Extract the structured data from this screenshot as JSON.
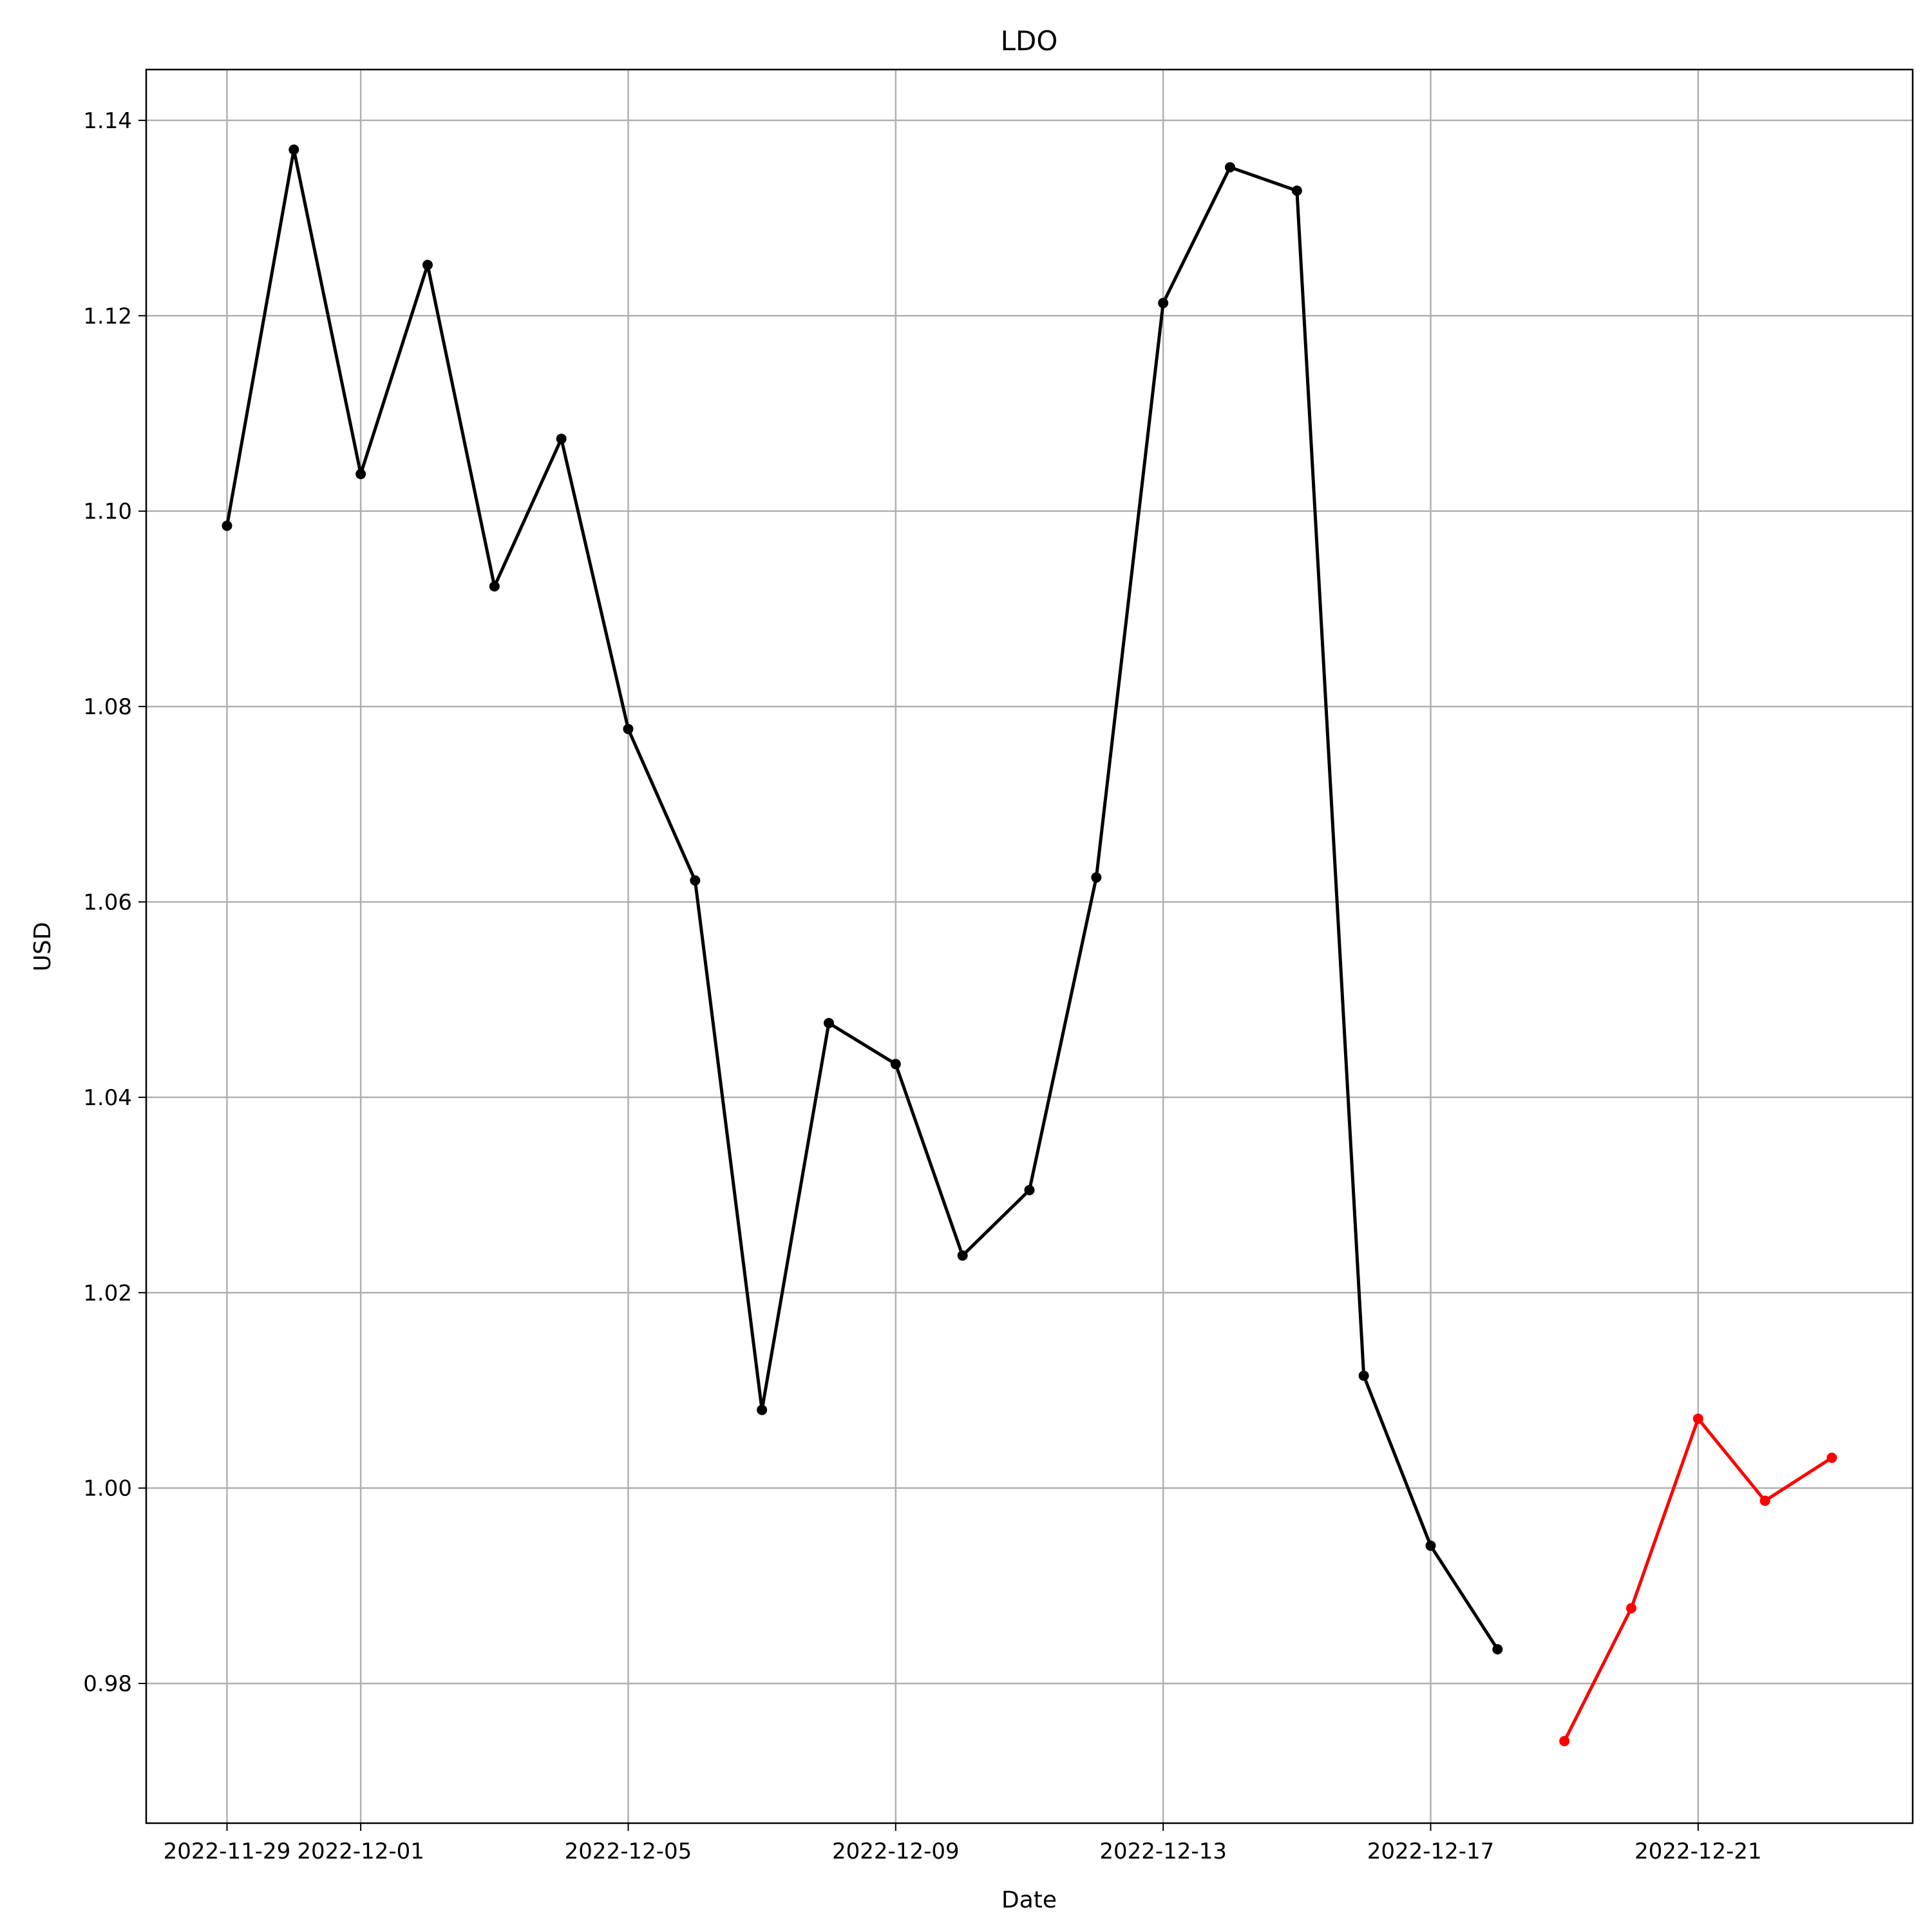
{
  "chart_data": {
    "type": "line",
    "title": "LDO",
    "xlabel": "Date",
    "ylabel": "USD",
    "grid": true,
    "x_ticks": [
      "2022-11-29",
      "2022-12-01",
      "2022-12-05",
      "2022-12-09",
      "2022-12-13",
      "2022-12-17",
      "2022-12-21"
    ],
    "y_ticks": [
      "0.98",
      "1.00",
      "1.02",
      "1.04",
      "1.06",
      "1.08",
      "1.10",
      "1.12",
      "1.14"
    ],
    "xlim": [
      "2022-11-27T19:00",
      "2022-12-24T05:00"
    ],
    "ylim": [
      0.9657,
      1.1452
    ],
    "series": [
      {
        "color": "#000000",
        "points": [
          {
            "x": "2022-11-29",
            "y": 1.0985
          },
          {
            "x": "2022-11-30",
            "y": 1.137
          },
          {
            "x": "2022-12-01",
            "y": 1.1038
          },
          {
            "x": "2022-12-02",
            "y": 1.1252
          },
          {
            "x": "2022-12-03",
            "y": 1.0923
          },
          {
            "x": "2022-12-04",
            "y": 1.1074
          },
          {
            "x": "2022-12-05",
            "y": 1.0777
          },
          {
            "x": "2022-12-06",
            "y": 1.0622
          },
          {
            "x": "2022-12-07",
            "y": 1.008
          },
          {
            "x": "2022-12-08",
            "y": 1.0476
          },
          {
            "x": "2022-12-09",
            "y": 1.0434
          },
          {
            "x": "2022-12-10",
            "y": 1.0238
          },
          {
            "x": "2022-12-11",
            "y": 1.0305
          },
          {
            "x": "2022-12-12",
            "y": 1.0625
          },
          {
            "x": "2022-12-13",
            "y": 1.1213
          },
          {
            "x": "2022-12-14",
            "y": 1.1352
          },
          {
            "x": "2022-12-15",
            "y": 1.1328
          },
          {
            "x": "2022-12-16",
            "y": 1.0115
          },
          {
            "x": "2022-12-17",
            "y": 0.9941
          },
          {
            "x": "2022-12-18",
            "y": 0.9835
          }
        ]
      },
      {
        "color": "#ff0000",
        "points": [
          {
            "x": "2022-12-19",
            "y": 0.9741
          },
          {
            "x": "2022-12-20",
            "y": 0.9877
          },
          {
            "x": "2022-12-21",
            "y": 1.0071
          },
          {
            "x": "2022-12-22",
            "y": 0.9987
          },
          {
            "x": "2022-12-23",
            "y": 1.0031
          }
        ]
      }
    ]
  }
}
